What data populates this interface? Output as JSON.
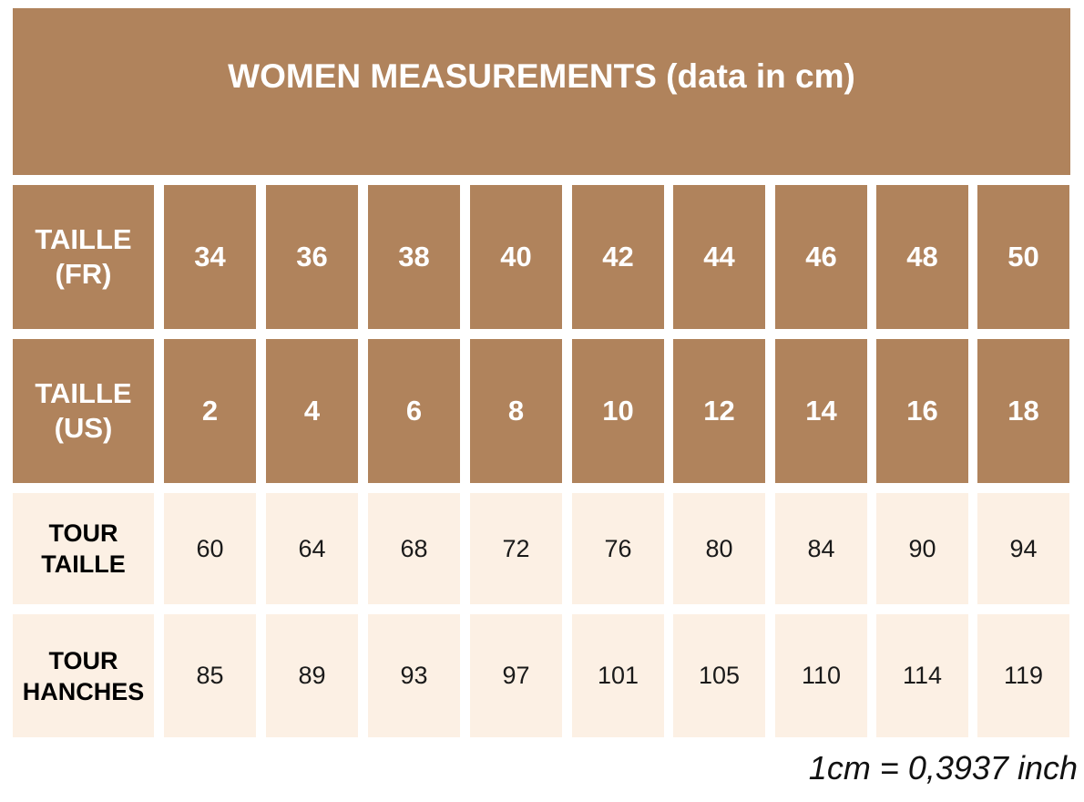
{
  "title": "WOMEN MEASUREMENTS (data in cm)",
  "rows": [
    {
      "label_lines": [
        "TAILLE",
        "(FR)"
      ],
      "values": [
        "34",
        "36",
        "38",
        "40",
        "42",
        "44",
        "46",
        "48",
        "50"
      ]
    },
    {
      "label_lines": [
        "TAILLE",
        "(US)"
      ],
      "values": [
        "2",
        "4",
        "6",
        "8",
        "10",
        "12",
        "14",
        "16",
        "18"
      ]
    },
    {
      "label_lines": [
        "TOUR",
        "TAILLE"
      ],
      "values": [
        "60",
        "64",
        "68",
        "72",
        "76",
        "80",
        "84",
        "90",
        "94"
      ]
    },
    {
      "label_lines": [
        "TOUR",
        "HANCHES"
      ],
      "values": [
        "85",
        "89",
        "93",
        "97",
        "101",
        "105",
        "110",
        "114",
        "119"
      ]
    }
  ],
  "footnote": "1cm = 0,3937 inch",
  "colors": {
    "header_brown": "#b0835c",
    "body_cream": "#fcf0e4",
    "header_text": "#ffffff",
    "body_text": "#1a1a1a"
  }
}
